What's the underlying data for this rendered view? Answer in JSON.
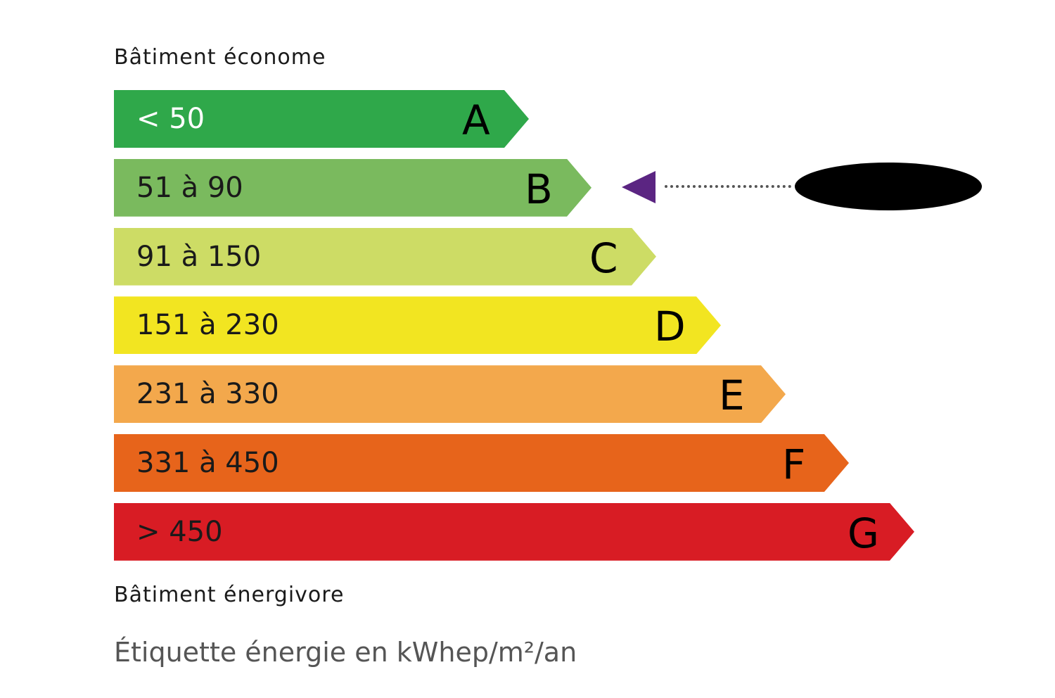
{
  "top_caption": "Bâtiment économe",
  "bottom_caption": "Bâtiment énergivore",
  "footer": "Étiquette énergie en kWhep/m²/an",
  "classes": [
    {
      "letter": "A",
      "range": "< 50",
      "color": "#2fa84a",
      "text_color": "#ffffff"
    },
    {
      "letter": "B",
      "range": "51 à 90",
      "color": "#7aba5e",
      "text_color": "#1a1a1a"
    },
    {
      "letter": "C",
      "range": "91 à 150",
      "color": "#cddc65",
      "text_color": "#1a1a1a"
    },
    {
      "letter": "D",
      "range": "151 à 230",
      "color": "#f2e521",
      "text_color": "#1a1a1a"
    },
    {
      "letter": "E",
      "range": "231 à 330",
      "color": "#f3a84c",
      "text_color": "#1a1a1a"
    },
    {
      "letter": "F",
      "range": "331 à 450",
      "color": "#e7641b",
      "text_color": "#1a1a1a"
    },
    {
      "letter": "G",
      "range": "> 450",
      "color": "#d81c24",
      "text_color": "#1a1a1a"
    }
  ],
  "indicator": {
    "class": "B",
    "color": "#5b2582",
    "value_redacted": true
  }
}
